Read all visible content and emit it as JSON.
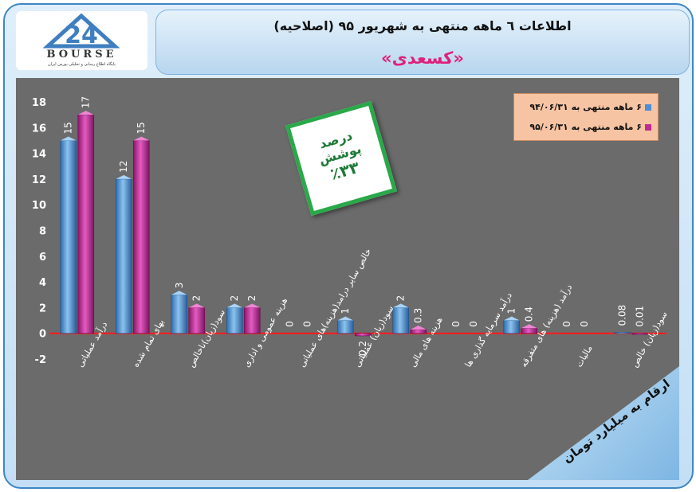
{
  "header": {
    "title": "اطلاعات ٦ ماهه منتهی به شهریور ۹۵ (اصلاحیه)",
    "subtitle": "«کسعدی»"
  },
  "logo": {
    "text": "BOURSE",
    "tagline": "پایگاه اطلاع رسانی و تحلیلی بورس ایران"
  },
  "stamp": {
    "label": "درصد پوشش",
    "value": "٪۳۳"
  },
  "banner": {
    "text": "ارقام به میلیارد تومان"
  },
  "colors": {
    "series1": "#4a8fd4",
    "series2": "#c02a94",
    "zero_line": "#ff1a1a",
    "plot_bg": "#6b6b6b"
  },
  "chart_data": {
    "type": "bar",
    "ylim": [
      -2,
      18
    ],
    "yticks": [
      -2,
      0,
      2,
      4,
      6,
      8,
      10,
      12,
      14,
      16,
      18
    ],
    "grid": false,
    "legend_position": "top-right",
    "categories": [
      "درآمد عملیاتی",
      "بهای تمام شده",
      "سود(زیان)ناخالص",
      "هزینه عمومی و اداری",
      "خالص سایر درامد(هزینه)های عملیاتی",
      "سود(زیان) عملیاتی",
      "هزینه های مالی",
      "درآمد سرمایه گذاری ها",
      "درآمد (هزینه) های متفرقه",
      "مالیات",
      "سود(زیان) خالص"
    ],
    "series": [
      {
        "name": "۶ ماهه منتهی به ۹۴/۰۶/۳۱",
        "values": [
          15,
          12,
          3,
          2,
          0,
          1,
          2,
          0,
          1,
          0,
          0.08
        ],
        "labels": [
          "15",
          "12",
          "3",
          "2",
          "0",
          "1",
          "2",
          "0",
          "1",
          "0",
          "0.08"
        ]
      },
      {
        "name": "۶ ماهه منتهی به ۹۵/۰۶/۳۱",
        "values": [
          17,
          15,
          2,
          2,
          0,
          -0.2,
          0.3,
          0,
          0.4,
          0,
          0.01
        ],
        "labels": [
          "17",
          "15",
          "2",
          "2",
          "0",
          "-0.2",
          "0.3",
          "0",
          "0.4",
          "0",
          "0.01"
        ]
      }
    ]
  }
}
